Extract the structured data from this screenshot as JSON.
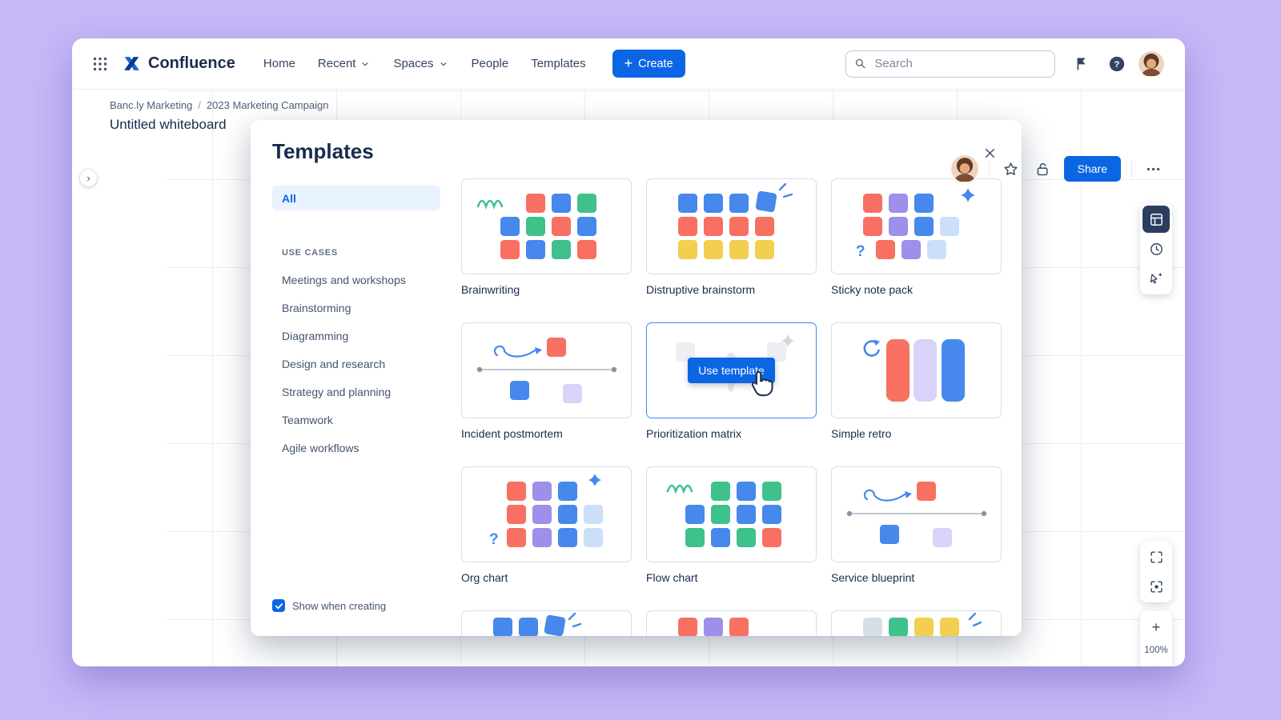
{
  "palette": {
    "red": "#F77061",
    "blue": "#4688EC",
    "green": "#3FC18C",
    "yellow": "#F2CF4E",
    "purple": "#9E8FEA",
    "palePurple": "#D9D2F9",
    "paleBlue": "#CCDFF9",
    "paleGray": "#D8DEE6",
    "brand": "#0C66E4",
    "ink": "#172B4D"
  },
  "app": {
    "brand": "Confluence",
    "nav": [
      {
        "label": "Home",
        "chevron": false
      },
      {
        "label": "Recent",
        "chevron": true
      },
      {
        "label": "Spaces",
        "chevron": true
      },
      {
        "label": "People",
        "chevron": false
      },
      {
        "label": "Templates",
        "chevron": false
      }
    ],
    "create_label": "Create",
    "search_placeholder": "Search"
  },
  "board": {
    "breadcrumb": {
      "space": "Banc.ly Marketing",
      "separator": "/",
      "page": "2023 Marketing Campaign"
    },
    "title": "Untitled whiteboard",
    "share_label": "Share",
    "zoom_level": "100%",
    "zoom_in": "+",
    "zoom_out": "−"
  },
  "modal": {
    "title": "Templates",
    "sidebar": {
      "selected_filter": "All",
      "section_label": "USE CASES",
      "items": [
        "Meetings and workshops",
        "Brainstorming",
        "Diagramming",
        "Design and research",
        "Strategy and planning",
        "Teamwork",
        "Agile workflows"
      ]
    },
    "use_template_label": "Use template",
    "footer_checkbox_label": "Show when creating",
    "cards": [
      {
        "label": "Brainwriting",
        "thumb": "brainwriting"
      },
      {
        "label": "Distruptive brainstorm",
        "thumb": "disruptive"
      },
      {
        "label": "Sticky note pack",
        "thumb": "sticky"
      },
      {
        "label": "Incident postmortem",
        "thumb": "timeline"
      },
      {
        "label": "Prioritization matrix",
        "thumb": "matrix",
        "hovered": true
      },
      {
        "label": "Simple retro",
        "thumb": "retro"
      },
      {
        "label": "Org chart",
        "thumb": "org"
      },
      {
        "label": "Flow chart",
        "thumb": "flow"
      },
      {
        "label": "Service blueprint",
        "thumb": "timeline"
      },
      {
        "label": "",
        "thumb": "partial1"
      },
      {
        "label": "",
        "thumb": "partial2"
      },
      {
        "label": "",
        "thumb": "partial3"
      }
    ]
  }
}
